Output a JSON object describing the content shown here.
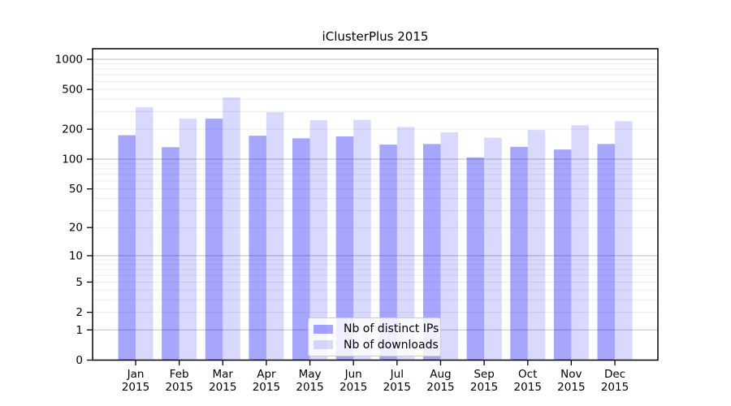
{
  "title": "iClusterPlus 2015",
  "legend": {
    "items": [
      {
        "label": "Nb of distinct IPs",
        "series_key": "ips"
      },
      {
        "label": "Nb of downloads",
        "series_key": "downloads"
      }
    ]
  },
  "colors": {
    "ips": "rgba(0,0,245,0.35)",
    "downloads": "rgba(0,0,245,0.15)",
    "grid_major": "#c9c9c9",
    "grid_minor": "#ececec",
    "axis": "#000000",
    "background": "#ffffff"
  },
  "chart_data": {
    "type": "bar",
    "title": "iClusterPlus 2015",
    "scale": "log1p",
    "grid": "horizontal, log decades major + 2-9 multiples minor",
    "legend_position": "inside lower-center",
    "categories": [
      "Jan 2015",
      "Feb 2015",
      "Mar 2015",
      "Apr 2015",
      "May 2015",
      "Jun 2015",
      "Jul 2015",
      "Aug 2015",
      "Sep 2015",
      "Oct 2015",
      "Nov 2015",
      "Dec 2015"
    ],
    "series": [
      {
        "name": "Nb of distinct IPs",
        "key": "ips",
        "values": [
          174,
          132,
          255,
          172,
          162,
          169,
          140,
          142,
          104,
          133,
          125,
          142
        ]
      },
      {
        "name": "Nb of downloads",
        "key": "downloads",
        "values": [
          331,
          255,
          416,
          296,
          246,
          248,
          210,
          186,
          164,
          196,
          219,
          240
        ]
      }
    ],
    "yticks": [
      0,
      1,
      2,
      5,
      10,
      20,
      50,
      100,
      200,
      500,
      1000
    ],
    "ylim": [
      0,
      1274
    ],
    "xlabel": "",
    "ylabel": ""
  }
}
